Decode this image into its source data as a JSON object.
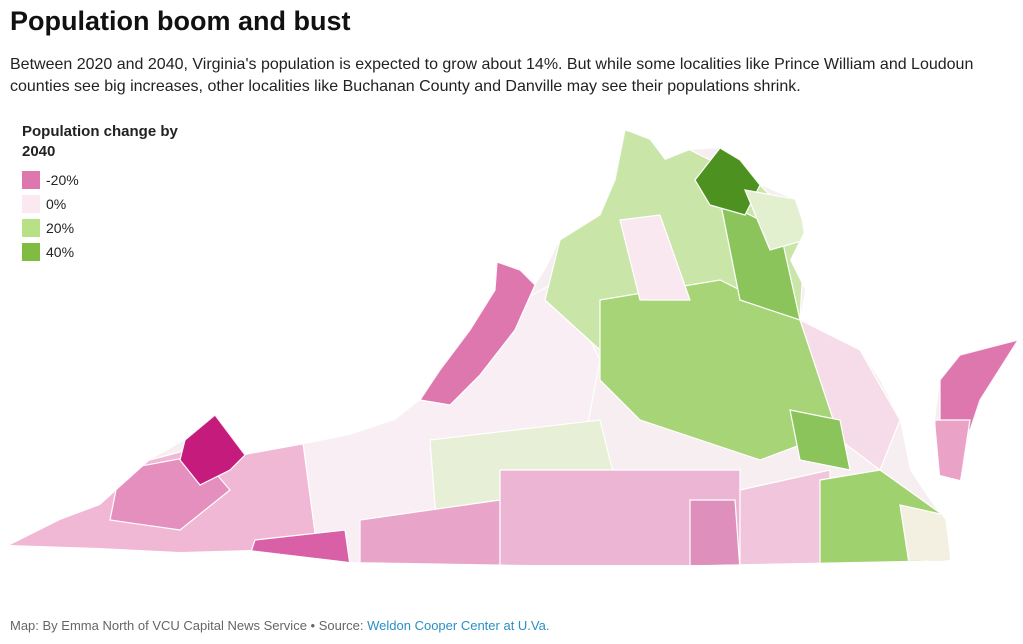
{
  "header": {
    "title": "Population boom and bust",
    "subtitle": "Between 2020 and 2040, Virginia's population is expected to grow about 14%. But while some localities like Prince William and Loudoun counties see big increases, other localities like Buchanan County and Danville may see their populations shrink."
  },
  "legend": {
    "title": "Population change by 2040",
    "items": [
      {
        "label": "-20%",
        "color": "#de77ae"
      },
      {
        "label": "0%",
        "color": "#fce8f1"
      },
      {
        "label": "20%",
        "color": "#b8e186"
      },
      {
        "label": "40%",
        "color": "#7fbc41"
      }
    ]
  },
  "footer": {
    "text": "Map: By Emma North of VCU Capital News Service • Source: ",
    "link": "Weldon Cooper Center at U.Va."
  }
}
